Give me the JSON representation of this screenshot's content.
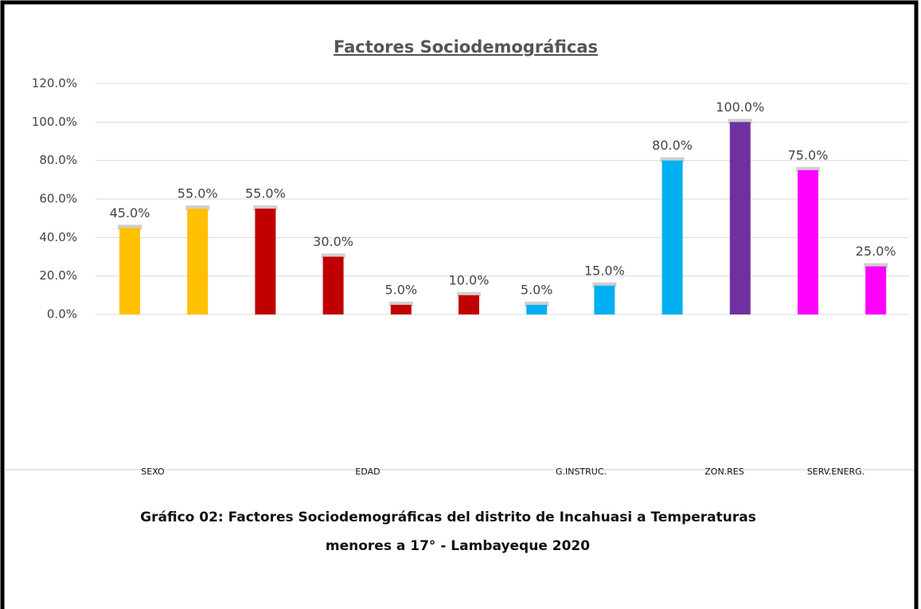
{
  "chart_data": {
    "type": "bar",
    "title": "Factores Sociodemográficas",
    "categories": [
      null,
      null,
      null,
      null,
      null,
      null,
      null,
      null,
      null,
      null,
      null,
      null
    ],
    "values": [
      45,
      55,
      55,
      30,
      5,
      10,
      5,
      15,
      80,
      100,
      75,
      25
    ],
    "value_labels": [
      "45.0%",
      "55.0%",
      "55.0%",
      "30.0%",
      "5.0%",
      "10.0%",
      "5.0%",
      "15.0%",
      "80.0%",
      "100.0%",
      "75.0%",
      "25.0%"
    ],
    "colors": [
      "#ffc000",
      "#ffc000",
      "#c00000",
      "#c00000",
      "#c00000",
      "#c00000",
      "#00b0f0",
      "#00b0f0",
      "#00b0f0",
      "#7030a0",
      "#ff00ff",
      "#ff00ff"
    ],
    "group_labels": [
      "SEXO",
      "EDAD",
      "G.INSTRUC.",
      "ZON.RES",
      "SERV.ENERG."
    ],
    "ylim": [
      0,
      120
    ],
    "yticks": [
      {
        "value": 0,
        "label": "0.0%"
      },
      {
        "value": 20,
        "label": "20.0%"
      },
      {
        "value": 40,
        "label": "40.0%"
      },
      {
        "value": 60,
        "label": "60.0%"
      },
      {
        "value": 80,
        "label": "80.0%"
      },
      {
        "value": 100,
        "label": "100.0%"
      },
      {
        "value": 120,
        "label": "120.0%"
      }
    ],
    "grid": true,
    "caption": [
      "Gráfico 02: Factores Sociodemográficas  del distrito de Incahuasi  a Temperaturas",
      "menores a 17° - Lambayeque 2020"
    ]
  }
}
